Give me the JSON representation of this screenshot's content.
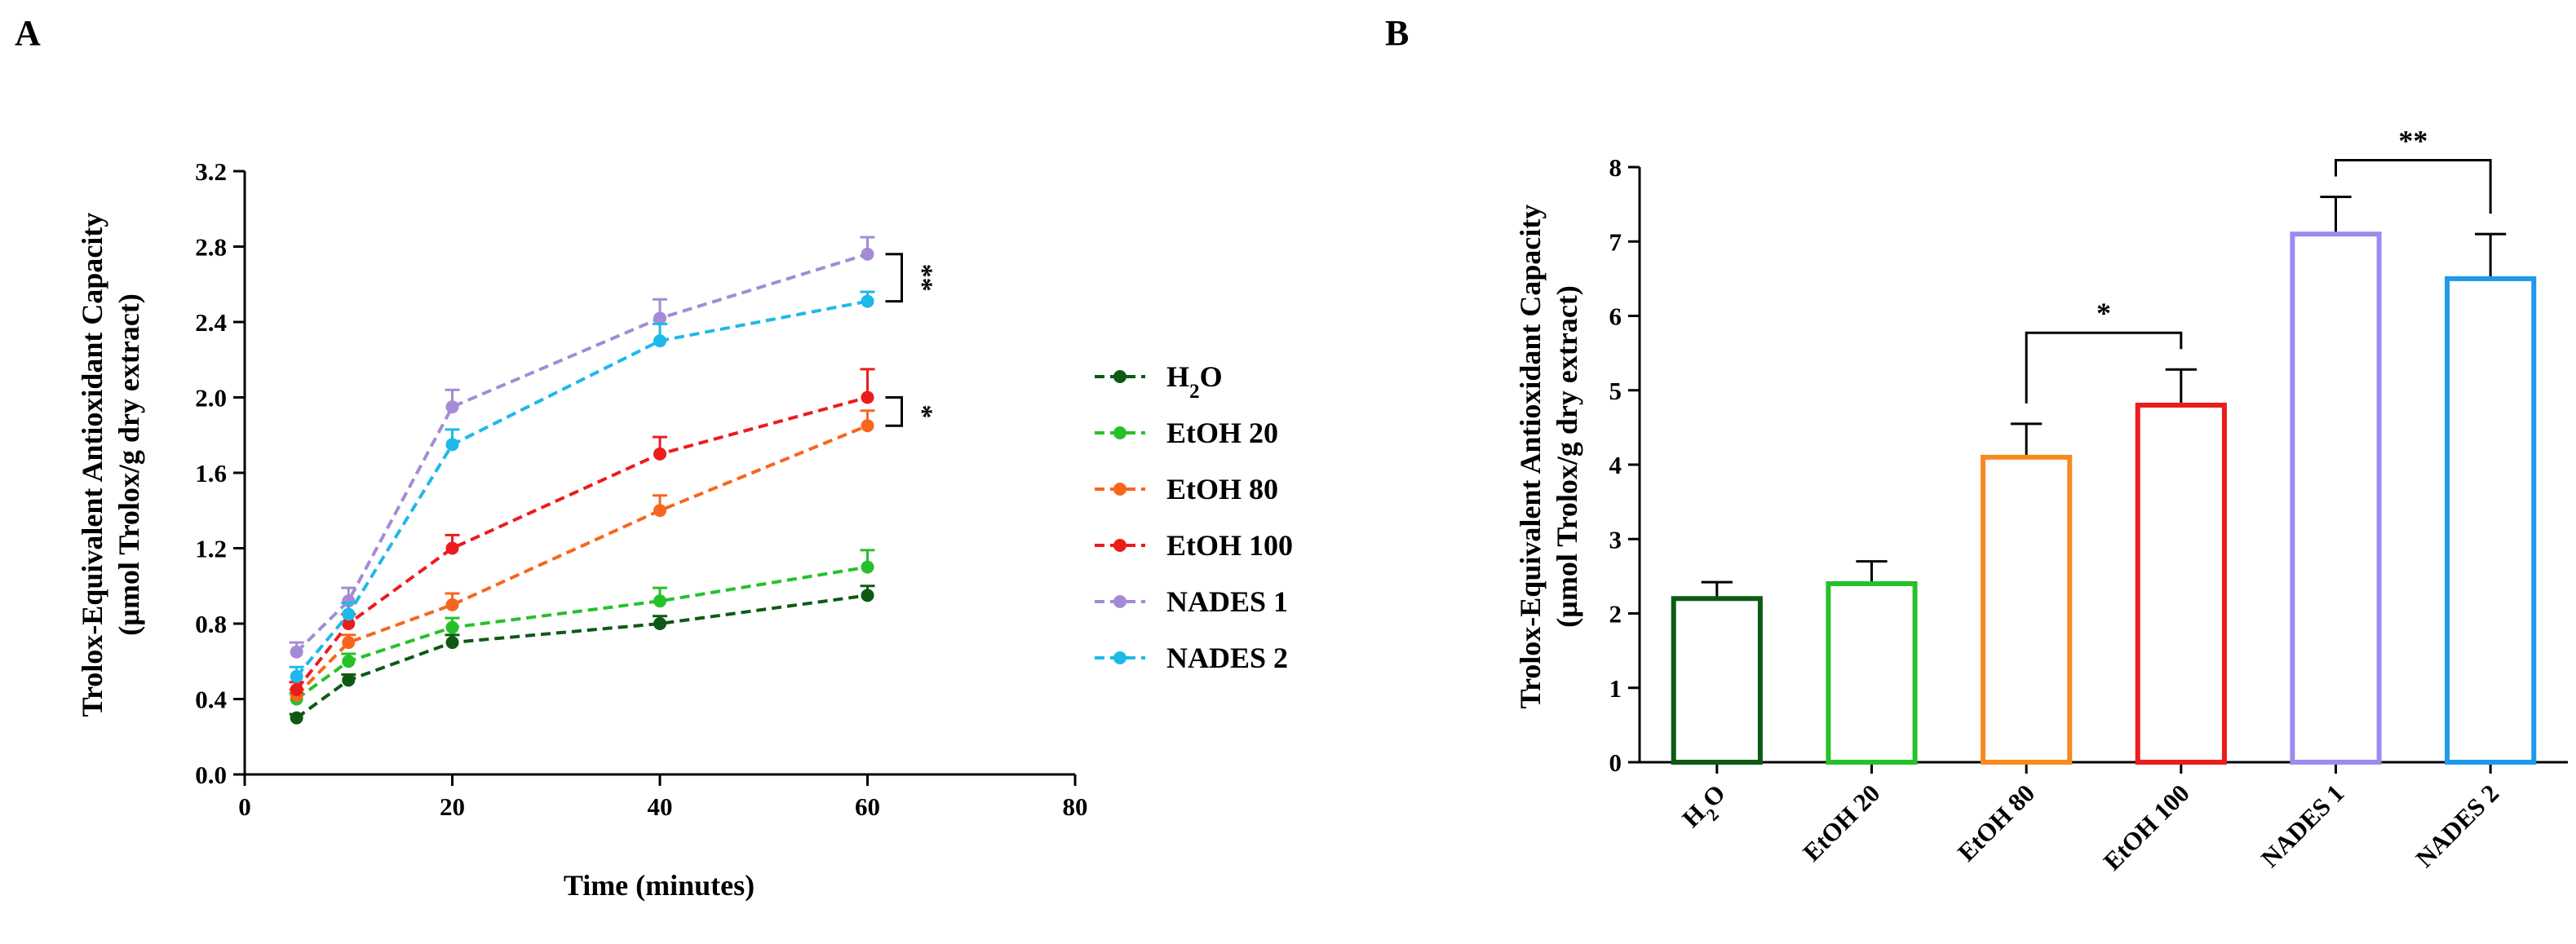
{
  "panels": {
    "a_label": "A",
    "b_label": "B"
  },
  "chart_data": [
    {
      "type": "line",
      "xlabel": "Time (minutes)",
      "ylabel_line1": "Trolox-Equivalent Antioxidant Capacity",
      "ylabel_line2": "(µmol Trolox/g dry extract)",
      "xlim": [
        0,
        80
      ],
      "ylim": [
        0.0,
        3.2
      ],
      "xticks": [
        "0",
        "20",
        "40",
        "60",
        "80"
      ],
      "yticks": [
        "0.0",
        "0.4",
        "0.8",
        "1.2",
        "1.6",
        "2.0",
        "2.4",
        "2.8",
        "3.2"
      ],
      "legend_position": "right",
      "significance": [
        {
          "label": "**",
          "between": [
            "NADES 1",
            "NADES 2"
          ]
        },
        {
          "label": "*",
          "between": [
            "EtOH 100",
            "EtOH 80"
          ]
        }
      ],
      "series": [
        {
          "name": "H2O",
          "legend_main": "H",
          "legend_sub": "2",
          "legend_rest": "O",
          "color": "#0e5a14",
          "x": [
            5,
            10,
            20,
            40,
            60
          ],
          "y": [
            0.3,
            0.5,
            0.7,
            0.8,
            0.95
          ],
          "err": [
            0.02,
            0.03,
            0.04,
            0.04,
            0.05
          ]
        },
        {
          "name": "EtOH 20",
          "legend_main": "EtOH 20",
          "legend_sub": "",
          "legend_rest": "",
          "color": "#26c12a",
          "x": [
            5,
            10,
            20,
            40,
            60
          ],
          "y": [
            0.4,
            0.6,
            0.78,
            0.92,
            1.1
          ],
          "err": [
            0.03,
            0.04,
            0.05,
            0.07,
            0.09
          ]
        },
        {
          "name": "EtOH 80",
          "legend_main": "EtOH 80",
          "legend_sub": "",
          "legend_rest": "",
          "color": "#f7661e",
          "x": [
            5,
            10,
            20,
            40,
            60
          ],
          "y": [
            0.42,
            0.7,
            0.9,
            1.4,
            1.85
          ],
          "err": [
            0.03,
            0.04,
            0.06,
            0.08,
            0.08
          ]
        },
        {
          "name": "EtOH 100",
          "legend_main": "EtOH 100",
          "legend_sub": "",
          "legend_rest": "",
          "color": "#ec1c1c",
          "x": [
            5,
            10,
            20,
            40,
            60
          ],
          "y": [
            0.45,
            0.8,
            1.2,
            1.7,
            2.0
          ],
          "err": [
            0.04,
            0.05,
            0.07,
            0.09,
            0.15
          ]
        },
        {
          "name": "NADES 1",
          "legend_main": "NADES 1",
          "legend_sub": "",
          "legend_rest": "",
          "color": "#a58bd6",
          "x": [
            5,
            10,
            20,
            40,
            60
          ],
          "y": [
            0.65,
            0.92,
            1.95,
            2.42,
            2.76
          ],
          "err": [
            0.05,
            0.07,
            0.09,
            0.1,
            0.09
          ]
        },
        {
          "name": "NADES 2",
          "legend_main": "NADES 2",
          "legend_sub": "",
          "legend_rest": "",
          "color": "#1fb8ea",
          "x": [
            5,
            10,
            20,
            40,
            60
          ],
          "y": [
            0.52,
            0.85,
            1.75,
            2.3,
            2.51
          ],
          "err": [
            0.05,
            0.06,
            0.08,
            0.09,
            0.05
          ]
        }
      ]
    },
    {
      "type": "bar",
      "ylabel_line1": "Trolox-Equivalent Antioxidant Capacity",
      "ylabel_line2": "(µmol Trolox/g dry extract)",
      "ylim": [
        0,
        8
      ],
      "yticks": [
        "0",
        "1",
        "2",
        "3",
        "4",
        "5",
        "6",
        "7",
        "8"
      ],
      "categories": [
        "H2O",
        "EtOH 20",
        "EtOH 80",
        "EtOH 100",
        "NADES 1",
        "NADES 2"
      ],
      "category_labels": [
        {
          "main": "H",
          "sub": "2",
          "rest": "O"
        },
        {
          "main": "EtOH 20",
          "sub": "",
          "rest": ""
        },
        {
          "main": "EtOH 80",
          "sub": "",
          "rest": ""
        },
        {
          "main": "EtOH 100",
          "sub": "",
          "rest": ""
        },
        {
          "main": "NADES 1",
          "sub": "",
          "rest": ""
        },
        {
          "main": "NADES 2",
          "sub": "",
          "rest": ""
        }
      ],
      "values": [
        2.2,
        2.4,
        4.1,
        4.8,
        7.1,
        6.5
      ],
      "errors": [
        0.22,
        0.3,
        0.45,
        0.48,
        0.5,
        0.6
      ],
      "colors": [
        "#0e5a14",
        "#26c12a",
        "#f78a1e",
        "#ec1c1c",
        "#9a8cf0",
        "#1f9ae8"
      ],
      "significance": [
        {
          "label": "*",
          "between": [
            "EtOH 80",
            "EtOH 100"
          ]
        },
        {
          "label": "**",
          "between": [
            "NADES 1",
            "NADES 2"
          ]
        }
      ]
    }
  ]
}
